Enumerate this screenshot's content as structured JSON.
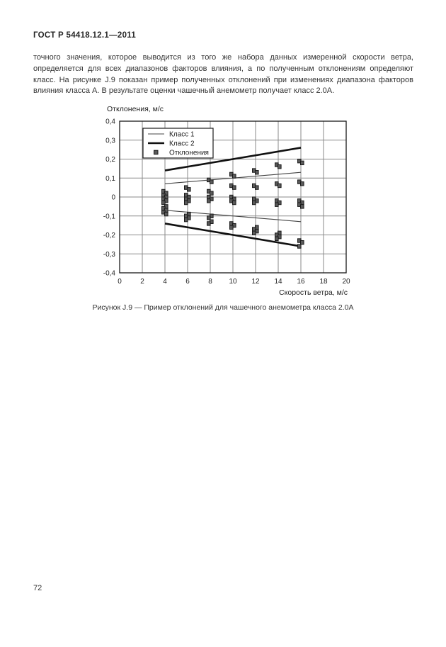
{
  "document": {
    "header": "ГОСТ Р 54418.12.1—2011",
    "paragraph": "точного значения, которое выводится из того же набора данных измеренной скорости ветра, определяется для всех диапазонов факторов влияния, а по полученным отклонениям определяют класс. На рисунке J.9 показан пример полученных отклонений при изменениях диапазона факторов влияния класса А. В результате оценки чашечный анемометр получает класс 2.0А.",
    "figure_caption": "Рисунок J.9 — Пример отклонений для чашечного анемометра класса 2.0А",
    "page_number": "72"
  },
  "chart_data": {
    "type": "scatter",
    "title": "",
    "ylabel": "Отклонения, м/с",
    "xlabel": "Скорость ветра, м/с",
    "xlim": [
      0,
      20
    ],
    "ylim": [
      -0.4,
      0.4
    ],
    "xticks": [
      0,
      2,
      4,
      6,
      8,
      10,
      12,
      14,
      16,
      18,
      20
    ],
    "xtick_labels": [
      "0",
      "2",
      "4",
      "6",
      "8",
      "10",
      "12",
      "14",
      "16",
      "18",
      "20"
    ],
    "yticks": [
      0.4,
      0.3,
      0.2,
      0.1,
      0,
      -0.1,
      -0.2,
      -0.3,
      -0.4
    ],
    "ytick_labels": [
      "0,4",
      "0,3",
      "0,2",
      "0,1",
      "0",
      "-0,1",
      "-0,2",
      "-0,3",
      "-0,4"
    ],
    "grid": true,
    "legend_position": "top-left-inside",
    "legend": [
      {
        "label": "Класс 1",
        "swatch": "thin-line"
      },
      {
        "label": "Класс 2",
        "swatch": "thick-line"
      },
      {
        "label": "Отклонения",
        "swatch": "square-marker"
      }
    ],
    "line_series": [
      {
        "name": "Класс 1 верхняя граница",
        "class": "class1",
        "points": [
          [
            4,
            0.07
          ],
          [
            16,
            0.13
          ]
        ]
      },
      {
        "name": "Класс 1 нижняя граница",
        "class": "class1",
        "points": [
          [
            4,
            -0.07
          ],
          [
            16,
            -0.13
          ]
        ]
      },
      {
        "name": "Класс 2 верхняя граница",
        "class": "class2",
        "points": [
          [
            4,
            0.14
          ],
          [
            16,
            0.26
          ]
        ]
      },
      {
        "name": "Класс 2 нижняя граница",
        "class": "class2",
        "points": [
          [
            4,
            -0.14
          ],
          [
            16,
            -0.26
          ]
        ]
      }
    ],
    "scatter_series": {
      "name": "Отклонения",
      "groups": [
        {
          "x": 4,
          "y": [
            0.03,
            0.02,
            0.01,
            0.0,
            -0.01,
            -0.02,
            -0.03,
            -0.05,
            -0.06,
            -0.07,
            -0.08,
            -0.09
          ]
        },
        {
          "x": 6,
          "y": [
            0.05,
            0.04,
            0.01,
            0.0,
            -0.01,
            -0.02,
            -0.03,
            -0.09,
            -0.1,
            -0.11,
            -0.12
          ]
        },
        {
          "x": 8,
          "y": [
            0.09,
            0.08,
            0.03,
            0.02,
            0.0,
            -0.01,
            -0.02,
            -0.1,
            -0.11,
            -0.13,
            -0.14
          ]
        },
        {
          "x": 10,
          "y": [
            0.12,
            0.11,
            0.06,
            0.05,
            0.0,
            -0.01,
            -0.02,
            -0.03,
            -0.14,
            -0.15,
            -0.16
          ]
        },
        {
          "x": 12,
          "y": [
            0.14,
            0.13,
            0.06,
            0.05,
            -0.01,
            -0.02,
            -0.03,
            -0.16,
            -0.17,
            -0.18,
            -0.19
          ]
        },
        {
          "x": 14,
          "y": [
            0.17,
            0.16,
            0.07,
            0.06,
            -0.02,
            -0.03,
            -0.04,
            -0.19,
            -0.2,
            -0.21,
            -0.22
          ]
        },
        {
          "x": 16,
          "y": [
            0.19,
            0.18,
            0.08,
            0.07,
            -0.02,
            -0.03,
            -0.04,
            -0.05,
            -0.23,
            -0.24,
            -0.26
          ]
        }
      ]
    },
    "styles": {
      "grid_color": "#8a8a8a",
      "axis_color": "#1a1a1a",
      "class1_color": "#444444",
      "class2_color": "#111111",
      "class1_width": 1.1,
      "class2_width": 2.6,
      "marker_color": "#5a5a5a",
      "marker_edge": "#1a1a1a",
      "text_color": "#222222"
    }
  }
}
